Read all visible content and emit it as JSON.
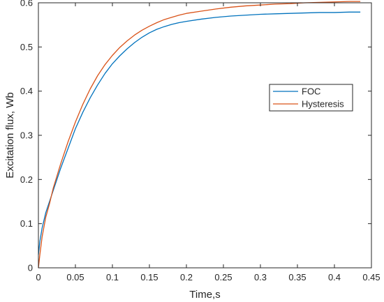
{
  "chart_data": {
    "type": "line",
    "title": "",
    "xlabel": "Time,s",
    "ylabel": "Excitation flux, Wb",
    "xlim": [
      0,
      0.45
    ],
    "ylim": [
      0,
      0.6
    ],
    "xticks": [
      0,
      0.05,
      0.1,
      0.15,
      0.2,
      0.25,
      0.3,
      0.35,
      0.4,
      0.45
    ],
    "xtick_labels": [
      "0",
      "0.05",
      "0.1",
      "0.15",
      "0.2",
      "0.25",
      "0.3",
      "0.35",
      "0.4",
      "0.45"
    ],
    "yticks": [
      0,
      0.1,
      0.2,
      0.3,
      0.4,
      0.5,
      0.6
    ],
    "ytick_labels": [
      "0",
      "0.1",
      "0.2",
      "0.3",
      "0.4",
      "0.5",
      "0.6"
    ],
    "grid": false,
    "legend_position": "right",
    "series": [
      {
        "name": "FOC",
        "color": "#0072BD",
        "x": [
          0,
          0.002,
          0.005,
          0.01,
          0.015,
          0.02,
          0.03,
          0.04,
          0.05,
          0.06,
          0.07,
          0.08,
          0.09,
          0.1,
          0.11,
          0.12,
          0.13,
          0.14,
          0.15,
          0.16,
          0.17,
          0.18,
          0.19,
          0.2,
          0.22,
          0.24,
          0.26,
          0.28,
          0.3,
          0.32,
          0.34,
          0.36,
          0.38,
          0.4,
          0.42,
          0.435
        ],
        "y": [
          0.03,
          0.06,
          0.09,
          0.125,
          0.15,
          0.175,
          0.225,
          0.27,
          0.315,
          0.352,
          0.385,
          0.414,
          0.44,
          0.462,
          0.48,
          0.496,
          0.51,
          0.522,
          0.532,
          0.54,
          0.546,
          0.551,
          0.555,
          0.558,
          0.563,
          0.567,
          0.57,
          0.572,
          0.574,
          0.575,
          0.576,
          0.577,
          0.578,
          0.578,
          0.579,
          0.579
        ]
      },
      {
        "name": "Hysteresis",
        "color": "#D95319",
        "x": [
          0,
          0.002,
          0.005,
          0.01,
          0.015,
          0.02,
          0.03,
          0.04,
          0.05,
          0.06,
          0.07,
          0.08,
          0.09,
          0.1,
          0.11,
          0.12,
          0.13,
          0.14,
          0.15,
          0.16,
          0.17,
          0.18,
          0.19,
          0.2,
          0.22,
          0.24,
          0.26,
          0.28,
          0.3,
          0.32,
          0.34,
          0.36,
          0.38,
          0.4,
          0.42,
          0.435
        ],
        "y": [
          0.0,
          0.03,
          0.07,
          0.115,
          0.145,
          0.18,
          0.235,
          0.285,
          0.33,
          0.37,
          0.405,
          0.435,
          0.46,
          0.481,
          0.499,
          0.514,
          0.527,
          0.538,
          0.547,
          0.555,
          0.562,
          0.567,
          0.572,
          0.576,
          0.581,
          0.586,
          0.59,
          0.593,
          0.595,
          0.597,
          0.598,
          0.6,
          0.601,
          0.602,
          0.603,
          0.603
        ]
      }
    ]
  }
}
